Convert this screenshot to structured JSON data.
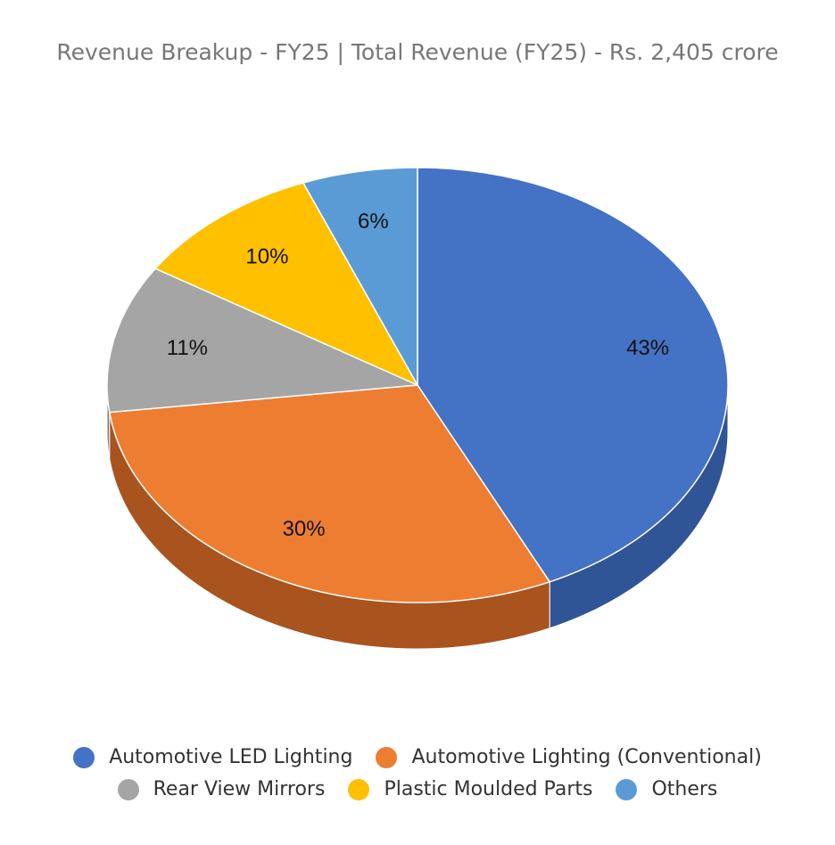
{
  "chart_data": {
    "type": "pie",
    "title": "Revenue Breakup - FY25 | Total Revenue (FY25) - Rs. 2,405 crore",
    "categories": [
      "Automotive LED Lighting",
      "Automotive Lighting (Conventional)",
      "Rear View Mirrors",
      "Plastic Moulded Parts",
      "Others"
    ],
    "values": [
      43,
      30,
      11,
      10,
      6
    ],
    "labels": [
      "43%",
      "30%",
      "11%",
      "10%",
      "6%"
    ],
    "colors": [
      "#4472C4",
      "#ED7D31",
      "#A5A5A5",
      "#FFC000",
      "#5B9BD5"
    ],
    "side_colors": [
      "#2F5597",
      "#A9531F",
      "#7F7F7F",
      "#BF9000",
      "#41719C"
    ],
    "style": "3d",
    "legend_position": "bottom"
  }
}
